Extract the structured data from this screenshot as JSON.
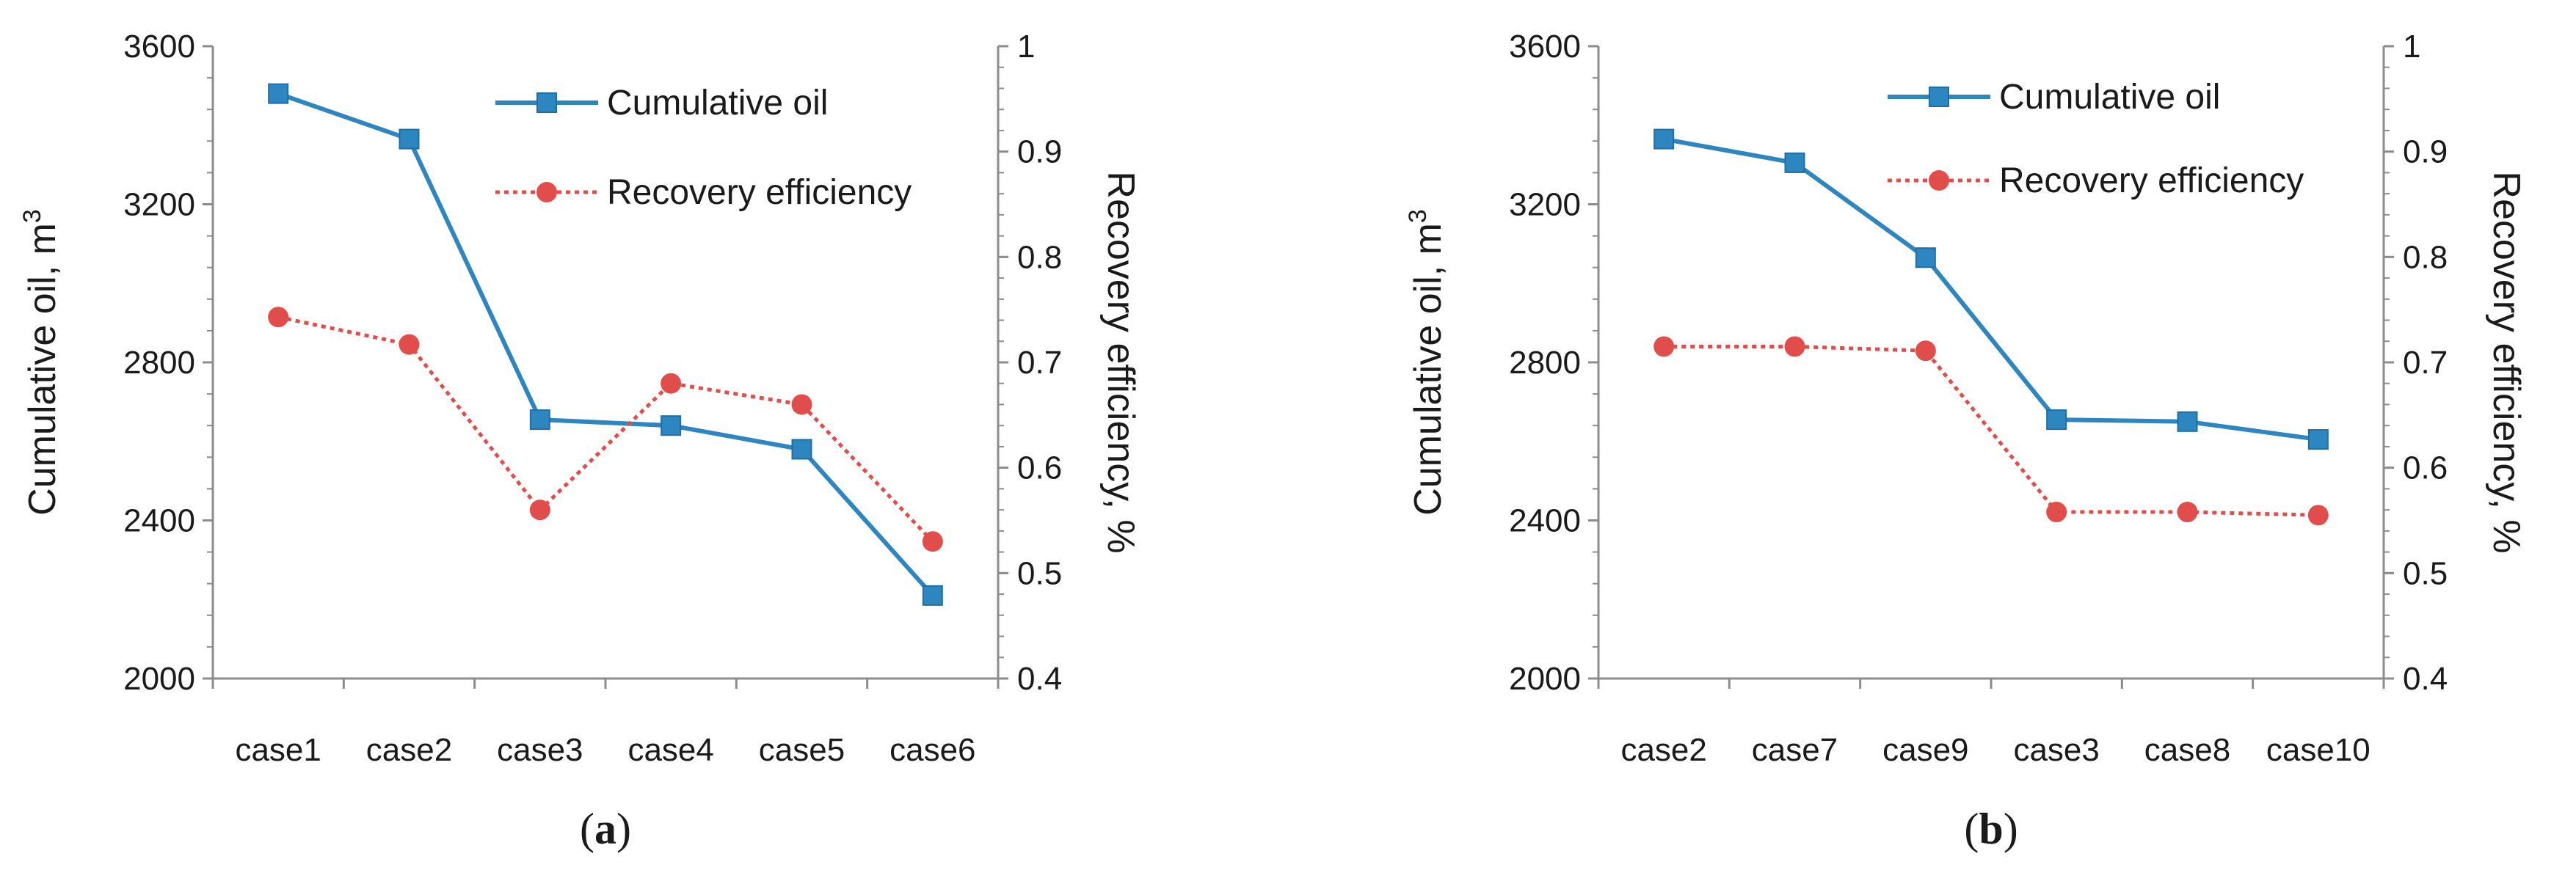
{
  "chart_data": [
    {
      "type": "line",
      "panel_label": {
        "open": "(",
        "letter": "a",
        "close": ")"
      },
      "categories": [
        "case1",
        "case2",
        "case3",
        "case4",
        "case5",
        "case6"
      ],
      "left_axis": {
        "label": "Cumulative oil, m",
        "superscript": "3",
        "ylim": [
          2000,
          3600
        ],
        "ticks": [
          "2000",
          "2400",
          "2800",
          "3200",
          "3600"
        ],
        "tick_values": [
          2000,
          2400,
          2800,
          3200,
          3600
        ]
      },
      "right_axis": {
        "label": "Recovery efficiency, %",
        "ylim": [
          0.4,
          1.0
        ],
        "ticks": [
          "0.4",
          "0.5",
          "0.6",
          "0.7",
          "0.8",
          "0.9",
          "1"
        ],
        "tick_values": [
          0.4,
          0.5,
          0.6,
          0.7,
          0.8,
          0.9,
          1.0
        ]
      },
      "series": [
        {
          "name": "Cumulative oil",
          "axis": "left",
          "marker": "square",
          "style": "solid",
          "color": "#2e86c1",
          "values": [
            3480,
            3365,
            2655,
            2640,
            2580,
            2210
          ]
        },
        {
          "name": "Recovery efficiency",
          "axis": "right",
          "marker": "circle",
          "style": "dotted",
          "color": "#e04d4a",
          "values": [
            0.743,
            0.717,
            0.56,
            0.68,
            0.66,
            0.53
          ]
        }
      ],
      "legend_position": "top-right"
    },
    {
      "type": "line",
      "panel_label": {
        "open": "(",
        "letter": "b",
        "close": ")"
      },
      "categories": [
        "case2",
        "case7",
        "case9",
        "case3",
        "case8",
        "case10"
      ],
      "left_axis": {
        "label": "Cumulative oil, m",
        "superscript": "3",
        "ylim": [
          2000,
          3600
        ],
        "ticks": [
          "2000",
          "2400",
          "2800",
          "3200",
          "3600"
        ],
        "tick_values": [
          2000,
          2400,
          2800,
          3200,
          3600
        ]
      },
      "right_axis": {
        "label": "Recovery efficiency, %",
        "ylim": [
          0.4,
          1.0
        ],
        "ticks": [
          "0.4",
          "0.5",
          "0.6",
          "0.7",
          "0.8",
          "0.9",
          "1"
        ],
        "tick_values": [
          0.4,
          0.5,
          0.6,
          0.7,
          0.8,
          0.9,
          1.0
        ]
      },
      "series": [
        {
          "name": "Cumulative oil",
          "axis": "left",
          "marker": "square",
          "style": "solid",
          "color": "#2e86c1",
          "values": [
            3365,
            3305,
            3065,
            2655,
            2650,
            2605
          ]
        },
        {
          "name": "Recovery efficiency",
          "axis": "right",
          "marker": "circle",
          "style": "dotted",
          "color": "#e04d4a",
          "values": [
            0.715,
            0.715,
            0.711,
            0.558,
            0.558,
            0.555
          ]
        }
      ],
      "legend_position": "top-right"
    }
  ]
}
